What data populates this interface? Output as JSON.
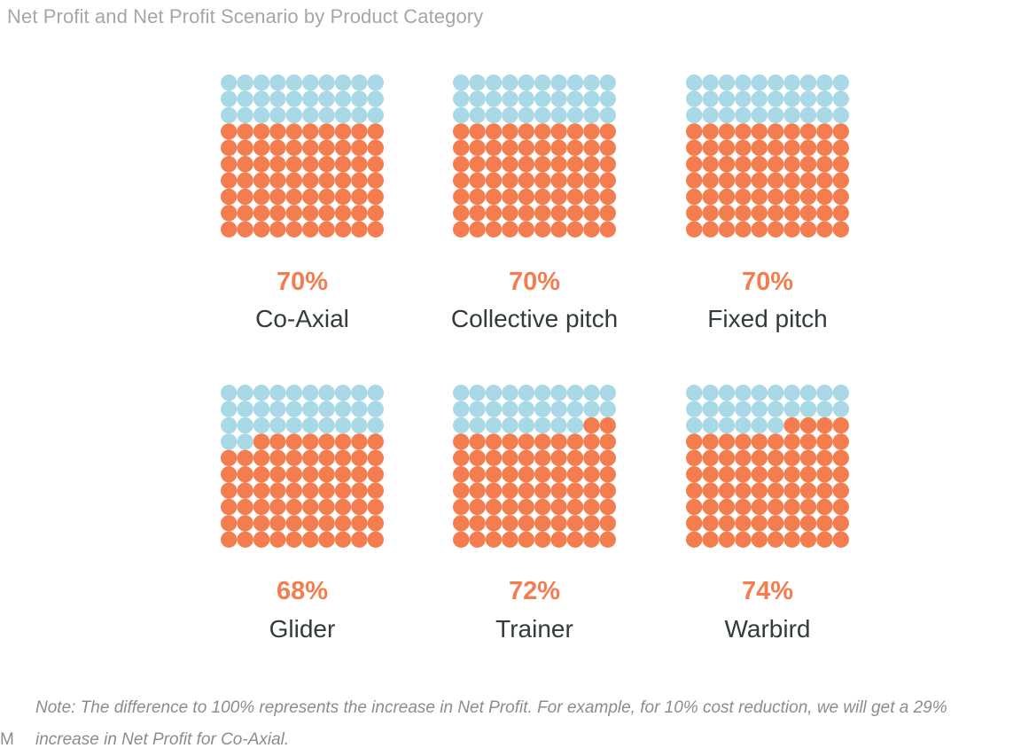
{
  "title": "Net Profit and Net Profit Scenario by Product Category",
  "colors": {
    "filled": "#f47d50",
    "empty": "#a9d8e6",
    "percent_text": "#f47d50",
    "label_text": "#333b3d",
    "title_text": "#a6a6a6",
    "note_text": "#8c8c8c"
  },
  "chart_data": {
    "type": "waffle",
    "grid": "10x10",
    "unit": "%",
    "panels": [
      {
        "category": "Co-Axial",
        "value": 70,
        "value_label": "70%"
      },
      {
        "category": "Collective pitch",
        "value": 70,
        "value_label": "70%"
      },
      {
        "category": "Fixed pitch",
        "value": 70,
        "value_label": "70%"
      },
      {
        "category": "Glider",
        "value": 68,
        "value_label": "68%"
      },
      {
        "category": "Trainer",
        "value": 72,
        "value_label": "72%"
      },
      {
        "category": "Warbird",
        "value": 74,
        "value_label": "74%"
      }
    ]
  },
  "note": {
    "line1": "Note: The difference to 100% represents the increase in Net Profit. For example, for 10% cost reduction, we will get a 29%",
    "line2": "increase in Net Profit for Co-Axial."
  },
  "edge_fragment": "M"
}
